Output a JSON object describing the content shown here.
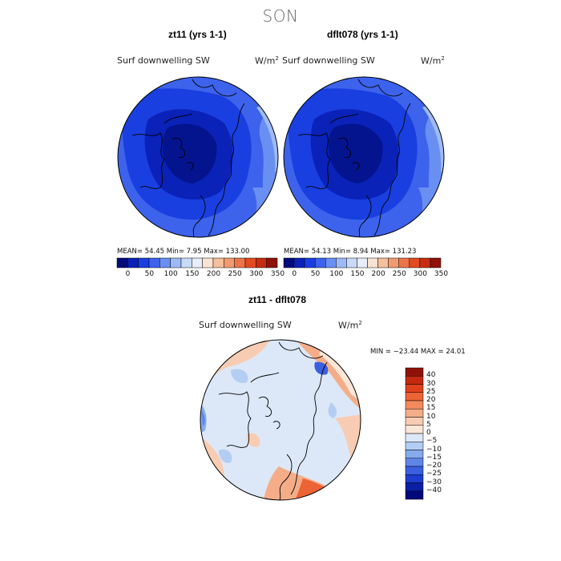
{
  "figure": {
    "season": "SON"
  },
  "panels": [
    {
      "title": "zt11 (yrs 1-1)",
      "variable": "Surf downwelling SW",
      "units": "W/m",
      "units_sup": "2",
      "stats": "MEAN=  54.45  Min=    7.95  Max= 133.00"
    },
    {
      "title": "dflt078 (yrs 1-1)",
      "variable": "Surf downwelling SW",
      "units": "W/m",
      "units_sup": "2",
      "stats": "MEAN=  54.13  Min=    8.94  Max= 131.23"
    }
  ],
  "diff_panel": {
    "title": "zt11 - dflt078",
    "variable": "Surf downwelling SW",
    "units": "W/m",
    "units_sup": "2",
    "stats": "MIN = −23.44  MAX =   24.01"
  },
  "chart_data": [
    {
      "type": "heatmap",
      "projection": "north polar stereographic",
      "title": "zt11 (yrs 1-1)",
      "variable": "Surf downwelling SW",
      "units": "W/m2",
      "mean": 54.45,
      "min": 7.95,
      "max": 133.0,
      "colorbar_ticks": [
        "0",
        "50",
        "100",
        "150",
        "200",
        "250",
        "300",
        "350"
      ],
      "colorbar_colors": [
        "#000c7a",
        "#0a22b8",
        "#1a3fe0",
        "#3d63ec",
        "#6a8ff2",
        "#9db9f6",
        "#c7daf9",
        "#e8eef9",
        "#fbe3d3",
        "#f6bf9d",
        "#f19a70",
        "#ec7448",
        "#e24a22",
        "#c62d10",
        "#8f1208"
      ]
    },
    {
      "type": "heatmap",
      "projection": "north polar stereographic",
      "title": "dflt078 (yrs 1-1)",
      "variable": "Surf downwelling SW",
      "units": "W/m2",
      "mean": 54.13,
      "min": 8.94,
      "max": 131.23,
      "colorbar_ticks": [
        "0",
        "50",
        "100",
        "150",
        "200",
        "250",
        "300",
        "350"
      ],
      "colorbar_colors": [
        "#000c7a",
        "#0a22b8",
        "#1a3fe0",
        "#3d63ec",
        "#6a8ff2",
        "#9db9f6",
        "#c7daf9",
        "#e8eef9",
        "#fbe3d3",
        "#f6bf9d",
        "#f19a70",
        "#ec7448",
        "#e24a22",
        "#c62d10",
        "#8f1208"
      ]
    },
    {
      "type": "heatmap",
      "projection": "north polar stereographic",
      "title": "zt11 - dflt078",
      "variable": "Surf downwelling SW",
      "units": "W/m2",
      "min": -23.44,
      "max": 24.01,
      "colorbar_ticks": [
        "40",
        "30",
        "25",
        "20",
        "15",
        "10",
        "5",
        "0",
        "−5",
        "−10",
        "−15",
        "−20",
        "−25",
        "−30",
        "−40"
      ],
      "colorbar_colors": [
        "#8f1208",
        "#c4290f",
        "#e0421c",
        "#ec6436",
        "#f28a5c",
        "#f5ad88",
        "#f8ccb2",
        "#fbe6d8",
        "#dce8f7",
        "#b3cdf3",
        "#86aaee",
        "#5f85e8",
        "#3a5fe0",
        "#1c3dd0",
        "#0b1fa6",
        "#00087a"
      ]
    }
  ]
}
